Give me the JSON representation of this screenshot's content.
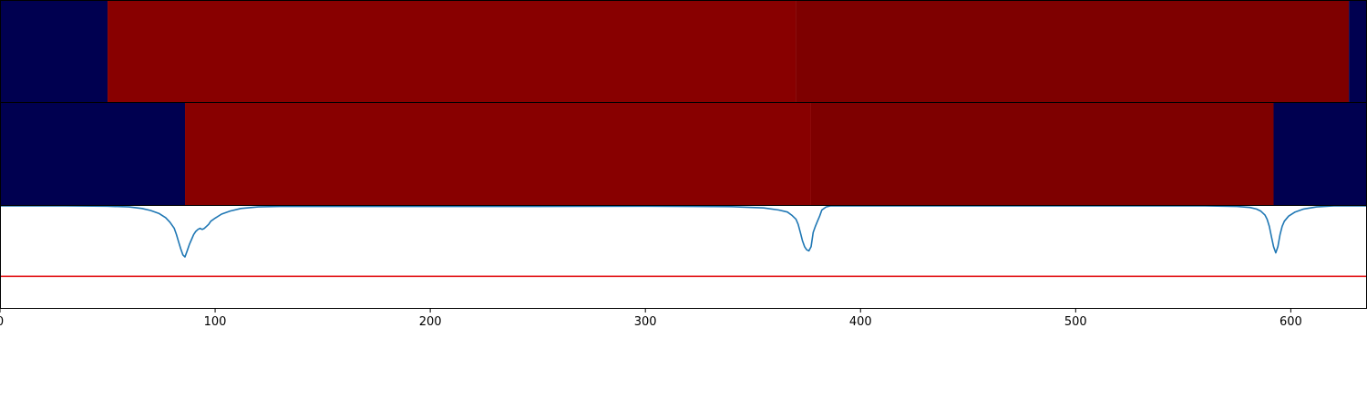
{
  "chart_data": {
    "type": "heatmap",
    "x_range": [
      0,
      635
    ],
    "x_ticks": [
      0,
      100,
      200,
      300,
      400,
      500,
      600
    ],
    "x_tick_labels": [
      "0",
      "100",
      "200",
      "300",
      "400",
      "500",
      "600"
    ],
    "colors": {
      "background_class": "#000050",
      "segment_class_a": "#880000",
      "segment_class_b": "#7e0000",
      "signal_line": "#1f77b4",
      "threshold_line": "#e31a1c"
    },
    "tracks": [
      {
        "name": "",
        "segments": [
          {
            "start": 0,
            "end": 50,
            "color": "#000050"
          },
          {
            "start": 50,
            "end": 370,
            "color": "#880000"
          },
          {
            "start": 370,
            "end": 627,
            "color": "#7e0000"
          },
          {
            "start": 627,
            "end": 635,
            "color": "#000050"
          }
        ]
      },
      {
        "name": "",
        "segments": [
          {
            "start": 0,
            "end": 86,
            "color": "#000050"
          },
          {
            "start": 86,
            "end": 377,
            "color": "#880000"
          },
          {
            "start": 377,
            "end": 592,
            "color": "#7e0000"
          },
          {
            "start": 592,
            "end": 635,
            "color": "#000050"
          }
        ]
      }
    ],
    "signal": {
      "ylim": [
        0,
        1
      ],
      "threshold": 0.31,
      "x": [
        0,
        30,
        50,
        60,
        66,
        70,
        74,
        77,
        79,
        81,
        82,
        83,
        84,
        85,
        86,
        87,
        88,
        89,
        90,
        91,
        92,
        93,
        94,
        95,
        96,
        97,
        98,
        100,
        103,
        107,
        112,
        120,
        130,
        200,
        250,
        300,
        340,
        355,
        362,
        366,
        368,
        370,
        371,
        372,
        373,
        374,
        375,
        376,
        377,
        378,
        379,
        380,
        381,
        382,
        384,
        386,
        390,
        400,
        500,
        560,
        575,
        581,
        584,
        586,
        588,
        589,
        590,
        591,
        592,
        593,
        594,
        595,
        596,
        597,
        599,
        602,
        606,
        612,
        620,
        635
      ],
      "y": [
        1.0,
        1.0,
        0.997,
        0.99,
        0.975,
        0.955,
        0.925,
        0.885,
        0.84,
        0.78,
        0.72,
        0.65,
        0.58,
        0.52,
        0.5,
        0.56,
        0.62,
        0.67,
        0.72,
        0.75,
        0.77,
        0.78,
        0.77,
        0.78,
        0.8,
        0.82,
        0.85,
        0.88,
        0.92,
        0.95,
        0.975,
        0.99,
        0.995,
        0.995,
        0.995,
        0.997,
        0.993,
        0.98,
        0.96,
        0.94,
        0.91,
        0.87,
        0.82,
        0.74,
        0.66,
        0.6,
        0.57,
        0.56,
        0.6,
        0.74,
        0.8,
        0.85,
        0.9,
        0.96,
        0.99,
        1.0,
        1.0,
        1.0,
        1.0,
        1.0,
        0.995,
        0.985,
        0.97,
        0.95,
        0.91,
        0.87,
        0.8,
        0.7,
        0.6,
        0.54,
        0.6,
        0.72,
        0.8,
        0.85,
        0.9,
        0.94,
        0.97,
        0.99,
        1.0,
        1.0
      ]
    }
  }
}
